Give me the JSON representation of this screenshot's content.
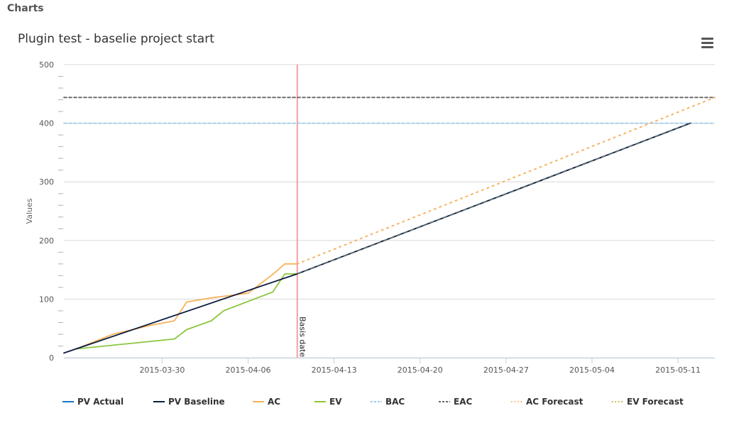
{
  "page": {
    "header": "Charts"
  },
  "chart": {
    "title": "Plugin test - baselie project start",
    "menu_icon": "hamburger-menu-icon"
  },
  "chart_data": {
    "type": "line",
    "title": "Plugin test - baselie project start",
    "ylabel": "Values",
    "xlabel": "",
    "ylim": [
      0,
      500
    ],
    "yticks": [
      0,
      100,
      200,
      300,
      400,
      500
    ],
    "xlim": [
      "2015-03-22",
      "2015-05-14"
    ],
    "xticks": [
      "2015-03-30",
      "2015-04-06",
      "2015-04-13",
      "2015-04-20",
      "2015-04-27",
      "2015-05-04",
      "2015-05-11"
    ],
    "grid": true,
    "legend_position": "bottom",
    "plot_lines": [
      {
        "x": "2015-04-10",
        "label": "Basis date",
        "color": "#f4a0a0"
      }
    ],
    "series": [
      {
        "name": "PV Actual",
        "color": "#1a73c8",
        "style": "solid",
        "points": []
      },
      {
        "name": "PV Baseline",
        "color": "#0d1b3e",
        "style": "solid",
        "points": [
          [
            "2015-03-22",
            8
          ],
          [
            "2015-04-10",
            143
          ],
          [
            "2015-05-12",
            400
          ]
        ]
      },
      {
        "name": "AC",
        "color": "#f7b25c",
        "style": "solid",
        "points": [
          [
            "2015-03-23",
            15
          ],
          [
            "2015-03-26",
            40
          ],
          [
            "2015-03-29",
            55
          ],
          [
            "2015-03-31",
            63
          ],
          [
            "2015-04-01",
            95
          ],
          [
            "2015-04-03",
            102
          ],
          [
            "2015-04-06",
            110
          ],
          [
            "2015-04-08",
            142
          ],
          [
            "2015-04-09",
            160
          ],
          [
            "2015-04-10",
            160
          ]
        ]
      },
      {
        "name": "EV",
        "color": "#8cc63e",
        "style": "solid",
        "points": [
          [
            "2015-03-23",
            15
          ],
          [
            "2015-03-31",
            32
          ],
          [
            "2015-04-01",
            48
          ],
          [
            "2015-04-03",
            63
          ],
          [
            "2015-04-04",
            80
          ],
          [
            "2015-04-08",
            112
          ],
          [
            "2015-04-09",
            143
          ],
          [
            "2015-04-10",
            143
          ]
        ]
      },
      {
        "name": "BAC",
        "color": "#9ecae8",
        "style": "dash",
        "points": [
          [
            "2015-03-22",
            400
          ],
          [
            "2015-05-14",
            400
          ]
        ]
      },
      {
        "name": "EAC",
        "color": "#666666",
        "style": "dash",
        "points": [
          [
            "2015-03-22",
            444
          ],
          [
            "2015-05-14",
            444
          ]
        ]
      },
      {
        "name": "AC Forecast",
        "color": "#f7b25c",
        "style": "dot",
        "points": [
          [
            "2015-04-10",
            160
          ],
          [
            "2015-05-14",
            444
          ]
        ]
      },
      {
        "name": "EV Forecast",
        "color": "#c8a040",
        "style": "dot",
        "points": [
          [
            "2015-04-10",
            143
          ],
          [
            "2015-05-12",
            400
          ]
        ]
      }
    ]
  }
}
